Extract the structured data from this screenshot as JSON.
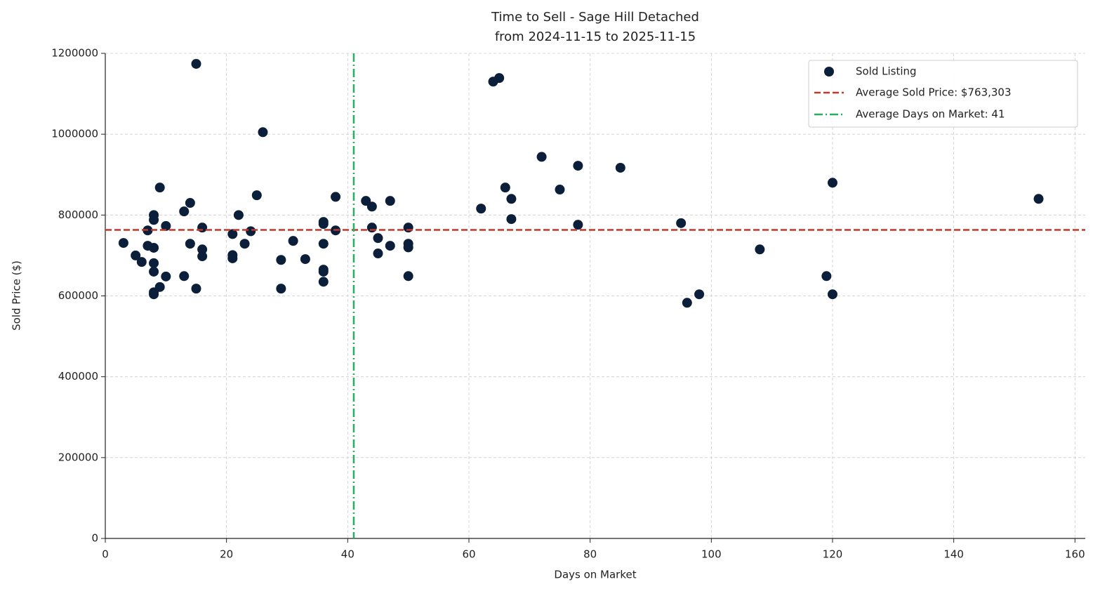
{
  "chart_data": {
    "type": "scatter",
    "title": "Time to Sell - Sage Hill Detached",
    "subtitle": "from 2024-11-15 to 2025-11-15",
    "x_label": "Days on Market",
    "y_label": "Sold Price ($)",
    "xlim": [
      0,
      161.7
    ],
    "ylim": [
      0,
      1200000
    ],
    "xticks": [
      0,
      20,
      40,
      60,
      80,
      100,
      120,
      140,
      160
    ],
    "yticks": [
      0,
      200000,
      400000,
      600000,
      800000,
      1000000,
      1200000
    ],
    "grid": true,
    "legend": "upper right",
    "series": [
      {
        "name": "Sold Listing",
        "color": "#0b1f3a",
        "x": [
          3,
          5,
          6,
          7,
          7,
          8,
          8,
          8,
          8,
          8,
          8,
          8,
          9,
          9,
          10,
          10,
          13,
          13,
          14,
          14,
          15,
          15,
          16,
          16,
          16,
          21,
          21,
          21,
          22,
          23,
          24,
          25,
          26,
          29,
          29,
          31,
          33,
          36,
          36,
          36,
          36,
          36,
          36,
          38,
          38,
          43,
          44,
          44,
          45,
          45,
          47,
          47,
          50,
          50,
          50,
          50,
          62,
          64,
          65,
          66,
          67,
          67,
          72,
          75,
          78,
          78,
          85,
          95,
          96,
          98,
          108,
          119,
          120,
          120,
          154
        ],
        "values": [
          731000,
          700000,
          684000,
          762000,
          724000,
          800000,
          788000,
          719000,
          681000,
          660000,
          609000,
          604000,
          868000,
          622000,
          773000,
          648000,
          809000,
          649000,
          830000,
          729000,
          1174000,
          618000,
          769000,
          715000,
          698000,
          753000,
          701000,
          693000,
          800000,
          729000,
          760000,
          849000,
          1005000,
          689000,
          618000,
          736000,
          691000,
          783000,
          778000,
          729000,
          665000,
          660000,
          635000,
          845000,
          762000,
          835000,
          821000,
          769000,
          743000,
          705000,
          835000,
          724000,
          769000,
          729000,
          720000,
          649000,
          816000,
          1130000,
          1139000,
          868000,
          840000,
          790000,
          944000,
          863000,
          922000,
          776000,
          917000,
          780000,
          583000,
          604000,
          715000,
          649000,
          880000,
          604000,
          840000
        ]
      }
    ],
    "hline": {
      "value": 763303,
      "label": "Average Sold Price: $763,303",
      "color": "#c0392b"
    },
    "vline": {
      "value": 41,
      "label": "Average Days on Market: 41",
      "color": "#27ae60"
    }
  }
}
